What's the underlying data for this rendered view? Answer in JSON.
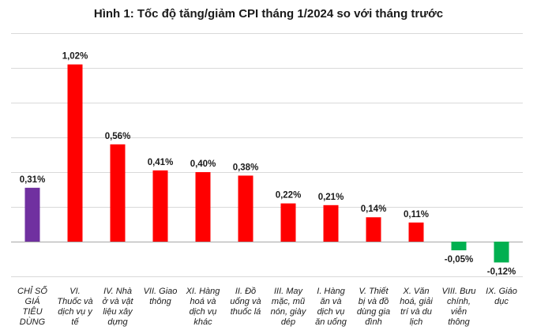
{
  "chart_data": {
    "type": "bar",
    "title": "Hình 1: Tốc độ tăng/giảm CPI tháng 1/2024 so với tháng trước",
    "xlabel": "",
    "ylabel": "",
    "ylim": [
      -0.2,
      1.2
    ],
    "grid": true,
    "legend": "none",
    "categories": [
      [
        "CHỈ SỐ",
        "GIÁ",
        "TIÊU",
        "DÙNG"
      ],
      [
        "VI.",
        "Thuốc và",
        "dịch vụ y",
        "tế"
      ],
      [
        "IV. Nhà",
        "ở và vật",
        "liệu xây",
        "dựng"
      ],
      [
        "VII. Giao",
        "thông"
      ],
      [
        "XI. Hàng",
        "hoá và",
        "dịch vụ",
        "khác"
      ],
      [
        "II. Đồ",
        "uống và",
        "thuốc lá"
      ],
      [
        "III. May",
        "mặc, mũ",
        "nón, giày",
        "dép"
      ],
      [
        "I. Hàng",
        "ăn và",
        "dịch vụ",
        "ăn uống"
      ],
      [
        "V. Thiết",
        "bị và đồ",
        "dùng gia",
        "đình"
      ],
      [
        "X. Văn",
        "hoá, giải",
        "trí và du",
        "lịch"
      ],
      [
        "VIII. Bưu",
        "chính,",
        "viễn",
        "thông"
      ],
      [
        "IX. Giáo",
        "dục"
      ]
    ],
    "values": [
      0.31,
      1.02,
      0.56,
      0.41,
      0.4,
      0.38,
      0.22,
      0.21,
      0.14,
      0.11,
      -0.05,
      -0.12
    ],
    "value_labels": [
      "0,31%",
      "1,02%",
      "0,56%",
      "0,41%",
      "0,40%",
      "0,38%",
      "0,22%",
      "0,21%",
      "0,14%",
      "0,11%",
      "-0,05%",
      "-0,12%"
    ],
    "colors": {
      "total": "#7030a0",
      "positive": "#ff0000",
      "negative": "#00b050"
    }
  }
}
